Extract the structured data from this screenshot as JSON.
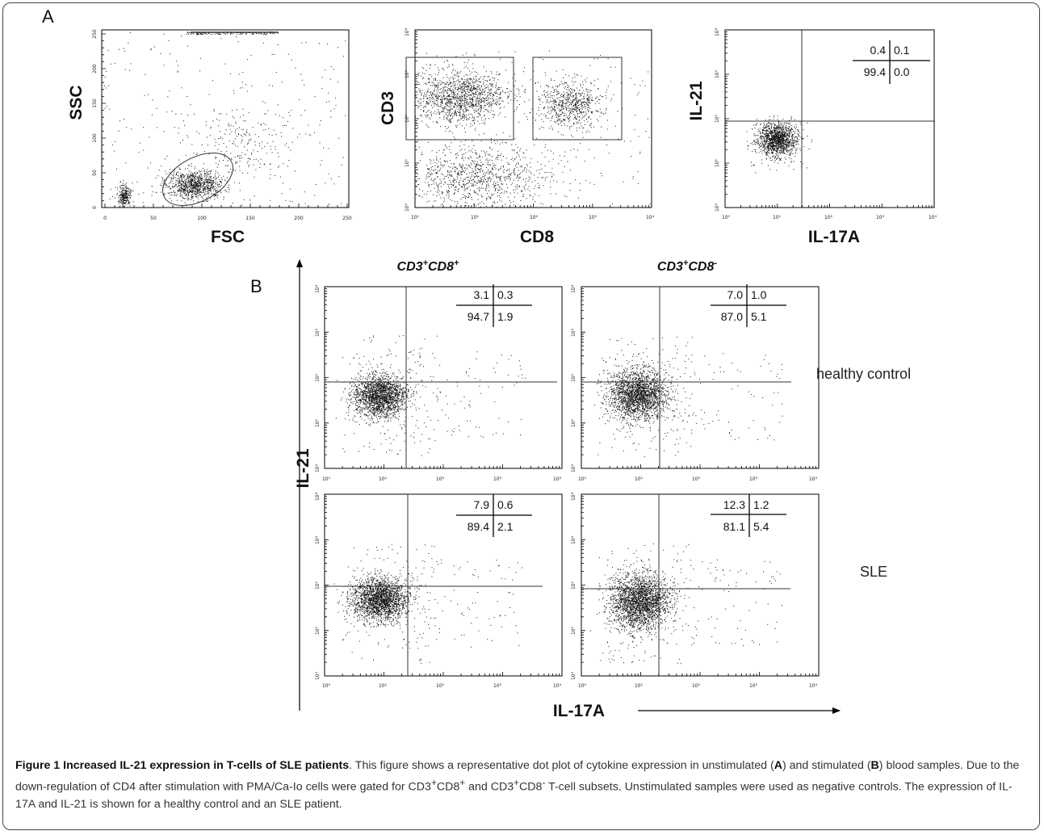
{
  "panel_letters": {
    "a": "A",
    "b": "B"
  },
  "plots": [
    {
      "id": "fsc-ssc",
      "xlabel": "FSC",
      "ylabel": "SSC",
      "x_ticks": [
        "0",
        "50",
        "100",
        "150",
        "200",
        "250"
      ],
      "y_ticks": [
        "0",
        "50",
        "100",
        "150",
        "200",
        "250"
      ]
    },
    {
      "id": "cd8-cd3",
      "xlabel": "CD8",
      "ylabel": "CD3",
      "x_ticks": [
        "10⁰",
        "10¹",
        "10²",
        "10³",
        "10⁴"
      ],
      "y_ticks": [
        "10⁰",
        "10¹",
        "10²",
        "10³",
        "10⁴"
      ]
    },
    {
      "id": "unstim",
      "xlabel": "IL-17A",
      "ylabel": "IL-21",
      "x_ticks": [
        "10⁰",
        "10¹",
        "10²",
        "10³",
        "10⁴"
      ],
      "y_ticks": [
        "10⁰",
        "10¹",
        "10²",
        "10³",
        "10⁴"
      ],
      "quadrants": {
        "ul": "0.4",
        "ur": "0.1",
        "ll": "99.4",
        "lr": "0.0"
      }
    },
    {
      "id": "hc-cd8pos",
      "x_ticks": [
        "10⁰",
        "10¹",
        "10²",
        "10³",
        "10⁴"
      ],
      "y_ticks": [
        "10⁰",
        "10¹",
        "10²",
        "10³",
        "10⁴"
      ],
      "quadrants": {
        "ul": "3.1",
        "ur": "0.3",
        "ll": "94.7",
        "lr": "1.9"
      }
    },
    {
      "id": "hc-cd8neg",
      "x_ticks": [
        "10⁰",
        "10¹",
        "10²",
        "10³",
        "10⁴"
      ],
      "y_ticks": [
        "10⁰",
        "10¹",
        "10²",
        "10³",
        "10⁴"
      ],
      "quadrants": {
        "ul": "7.0",
        "ur": "1.0",
        "ll": "87.0",
        "lr": "5.1"
      }
    },
    {
      "id": "sle-cd8pos",
      "x_ticks": [
        "10⁰",
        "10¹",
        "10²",
        "10³",
        "10⁴"
      ],
      "y_ticks": [
        "10⁰",
        "10¹",
        "10²",
        "10³",
        "10⁴"
      ],
      "quadrants": {
        "ul": "7.9",
        "ur": "0.6",
        "ll": "89.4",
        "lr": "2.1"
      }
    },
    {
      "id": "sle-cd8neg",
      "x_ticks": [
        "10⁰",
        "10¹",
        "10²",
        "10³",
        "10⁴"
      ],
      "y_ticks": [
        "10⁰",
        "10¹",
        "10²",
        "10³",
        "10⁴"
      ],
      "quadrants": {
        "ul": "12.3",
        "ur": "1.2",
        "ll": "81.1",
        "lr": "5.4"
      }
    }
  ],
  "panel_b": {
    "col_titles": [
      {
        "base1": "CD3",
        "sup1": "+",
        "base2": "CD8",
        "sup2": "+"
      },
      {
        "base1": "CD3",
        "sup1": "+",
        "base2": "CD8",
        "sup2": "-"
      }
    ],
    "row_labels": [
      "healthy control",
      "SLE"
    ],
    "ylabel": "IL-21",
    "xlabel": "IL-17A"
  },
  "caption": {
    "title": "Figure 1 Increased IL-21 expression in T-cells of SLE patients",
    "s1": ". This figure shows a representative dot plot of cytokine expression in unstimulated (",
    "bA": "A",
    "s2": ") and stimulated (",
    "bB": "B",
    "s3": ") blood samples. Due to the down-regulation of CD4 after stimulation with PMA/Ca-Io cells were gated for ",
    "cd3a": "CD3",
    "sp1": "+",
    "cd8a": "CD8",
    "sp2": "+",
    "and": " and ",
    "cd3b": "CD3",
    "sp3": "+",
    "cd8b": "CD8",
    "sp4": "-",
    "s4": " T-cell subsets. Unstimulated samples were used as negative controls. The expression of IL-17A and IL-21 is shown for a healthy control and an SLE patient."
  }
}
